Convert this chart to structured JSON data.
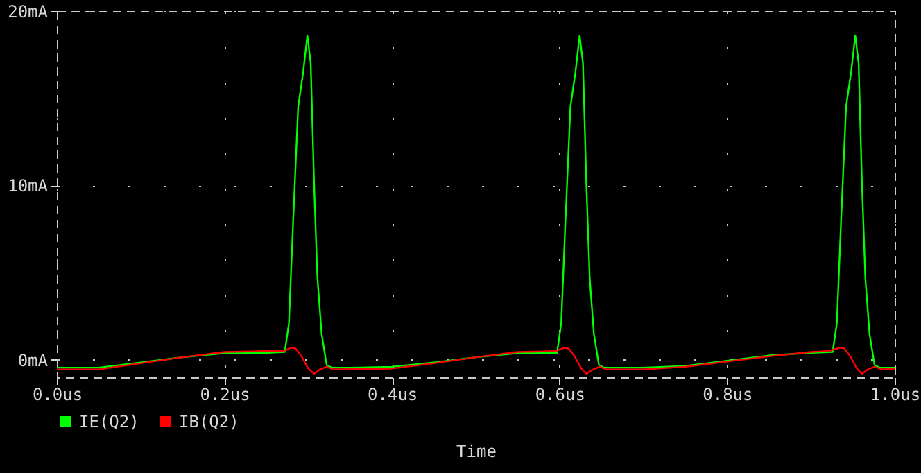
{
  "chart_data": {
    "type": "line",
    "xlabel": "Time",
    "xlim": [
      0,
      1.0
    ],
    "ylim": [
      -1,
      20
    ],
    "xticks": [
      {
        "value": 0,
        "label": "0.0us"
      },
      {
        "value": 0.2,
        "label": "0.2us"
      },
      {
        "value": 0.4,
        "label": "0.4us"
      },
      {
        "value": 0.6,
        "label": "0.6us"
      },
      {
        "value": 0.8,
        "label": "0.8us"
      },
      {
        "value": 1.0,
        "label": "1.0us"
      }
    ],
    "yticks": [
      {
        "value": 0,
        "label": "0mA"
      },
      {
        "value": 10,
        "label": "10mA"
      },
      {
        "value": 20,
        "label": "20mA"
      }
    ],
    "grid": true,
    "legend": "bottom left",
    "line_style": "solid",
    "marker": "none",
    "series": [
      {
        "name": "IE(Q2)",
        "color": "#00ff00",
        "x": [
          0,
          0.05,
          0.1,
          0.15,
          0.2,
          0.25,
          0.272,
          0.277,
          0.282,
          0.288,
          0.294,
          0.299,
          0.303,
          0.307,
          0.311,
          0.316,
          0.322,
          0.328,
          0.35,
          0.4,
          0.45,
          0.5,
          0.55,
          0.597,
          0.602,
          0.607,
          0.613,
          0.619,
          0.624,
          0.628,
          0.632,
          0.636,
          0.641,
          0.647,
          0.653,
          0.7,
          0.75,
          0.8,
          0.85,
          0.9,
          0.926,
          0.931,
          0.936,
          0.942,
          0.948,
          0.953,
          0.957,
          0.961,
          0.965,
          0.97,
          0.976,
          0.982,
          1.0
        ],
        "values": [
          -0.45,
          -0.45,
          -0.15,
          0.15,
          0.38,
          0.4,
          0.45,
          2.1,
          7.9,
          14.5,
          16.5,
          18.6,
          17.0,
          10.1,
          4.7,
          1.5,
          -0.3,
          -0.45,
          -0.45,
          -0.4,
          -0.15,
          0.15,
          0.38,
          0.4,
          2.1,
          7.9,
          14.5,
          16.5,
          18.6,
          17.0,
          10.1,
          4.7,
          1.5,
          -0.3,
          -0.45,
          -0.45,
          -0.35,
          -0.05,
          0.25,
          0.4,
          0.45,
          2.1,
          7.9,
          14.5,
          16.5,
          18.6,
          17.0,
          10.1,
          4.7,
          1.5,
          -0.3,
          -0.45,
          -0.45
        ]
      },
      {
        "name": "IB(Q2)",
        "color": "#ff0000",
        "x": [
          0,
          0.05,
          0.1,
          0.15,
          0.2,
          0.25,
          0.27,
          0.28,
          0.285,
          0.292,
          0.3,
          0.307,
          0.314,
          0.322,
          0.33,
          0.4,
          0.45,
          0.5,
          0.55,
          0.595,
          0.606,
          0.611,
          0.618,
          0.626,
          0.632,
          0.64,
          0.648,
          0.656,
          0.7,
          0.75,
          0.8,
          0.85,
          0.9,
          0.92,
          0.935,
          0.94,
          0.947,
          0.955,
          0.961,
          0.968,
          0.976,
          0.985,
          1.0
        ],
        "values": [
          -0.55,
          -0.55,
          -0.2,
          0.15,
          0.45,
          0.5,
          0.5,
          0.7,
          0.65,
          0.2,
          -0.5,
          -0.8,
          -0.55,
          -0.4,
          -0.55,
          -0.5,
          -0.2,
          0.15,
          0.45,
          0.5,
          0.7,
          0.65,
          0.2,
          -0.5,
          -0.8,
          -0.55,
          -0.4,
          -0.55,
          -0.55,
          -0.4,
          -0.1,
          0.2,
          0.45,
          0.5,
          0.7,
          0.65,
          0.2,
          -0.5,
          -0.8,
          -0.55,
          -0.4,
          -0.55,
          -0.5
        ]
      }
    ]
  }
}
